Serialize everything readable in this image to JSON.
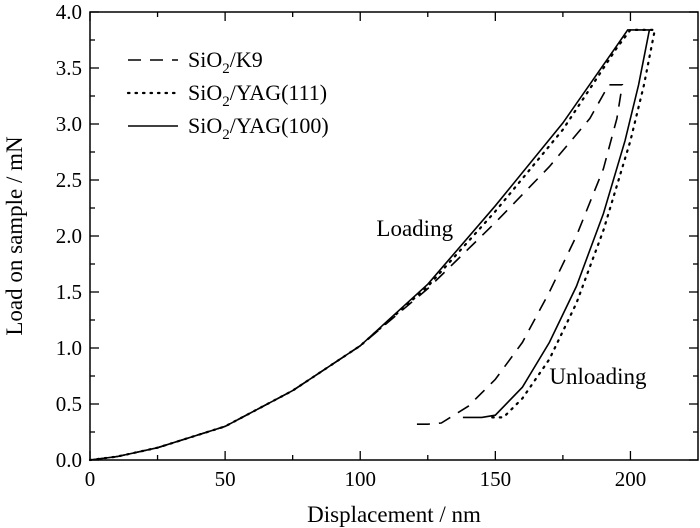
{
  "chart_data": {
    "type": "line",
    "xlabel": "Displacement / nm",
    "ylabel": "Load on sample / mN",
    "xlim": [
      0,
      225
    ],
    "ylim": [
      0,
      4.0
    ],
    "xticks": [
      0,
      50,
      100,
      150,
      200
    ],
    "yticks": [
      0.0,
      0.5,
      1.0,
      1.5,
      2.0,
      2.5,
      3.0,
      3.5,
      4.0
    ],
    "minor_ticks": true,
    "grid": false,
    "legend_position": "top-left",
    "annotations": [
      {
        "text": "Loading",
        "x": 106,
        "y": 2.0
      },
      {
        "text": "Unloading",
        "x": 170,
        "y": 0.68
      }
    ],
    "series": [
      {
        "name": "SiO",
        "sub": "2",
        "suffix": "/K9",
        "style": "dashed",
        "x": [
          0,
          10,
          25,
          50,
          75,
          100,
          125,
          150,
          170,
          185,
          192,
          195,
          197,
          195,
          190,
          180,
          170,
          160,
          150,
          140,
          130,
          125,
          120
        ],
        "y": [
          0,
          0.03,
          0.11,
          0.3,
          0.62,
          1.02,
          1.53,
          2.12,
          2.62,
          3.05,
          3.35,
          3.35,
          3.35,
          3.05,
          2.6,
          2.0,
          1.5,
          1.05,
          0.72,
          0.48,
          0.33,
          0.32,
          0.32
        ]
      },
      {
        "name": "SiO",
        "sub": "2",
        "suffix": "/YAG(111)",
        "style": "dotted",
        "x": [
          0,
          10,
          25,
          50,
          75,
          100,
          125,
          150,
          175,
          195,
          200,
          207,
          209,
          205,
          200,
          190,
          180,
          170,
          160,
          153,
          148
        ],
        "y": [
          0,
          0.03,
          0.11,
          0.3,
          0.62,
          1.02,
          1.55,
          2.22,
          2.95,
          3.68,
          3.84,
          3.84,
          3.84,
          3.35,
          2.85,
          2.05,
          1.4,
          0.9,
          0.55,
          0.38,
          0.38
        ]
      },
      {
        "name": "SiO",
        "sub": "2",
        "suffix": "/YAG(100)",
        "style": "solid",
        "x": [
          0,
          10,
          25,
          50,
          75,
          100,
          125,
          150,
          175,
          195,
          199,
          207,
          207,
          203,
          198,
          190,
          180,
          170,
          160,
          150,
          145,
          138
        ],
        "y": [
          0,
          0.03,
          0.11,
          0.3,
          0.62,
          1.02,
          1.57,
          2.27,
          3.01,
          3.7,
          3.84,
          3.84,
          3.84,
          3.35,
          2.85,
          2.2,
          1.55,
          1.05,
          0.65,
          0.4,
          0.38,
          0.38
        ]
      }
    ]
  }
}
